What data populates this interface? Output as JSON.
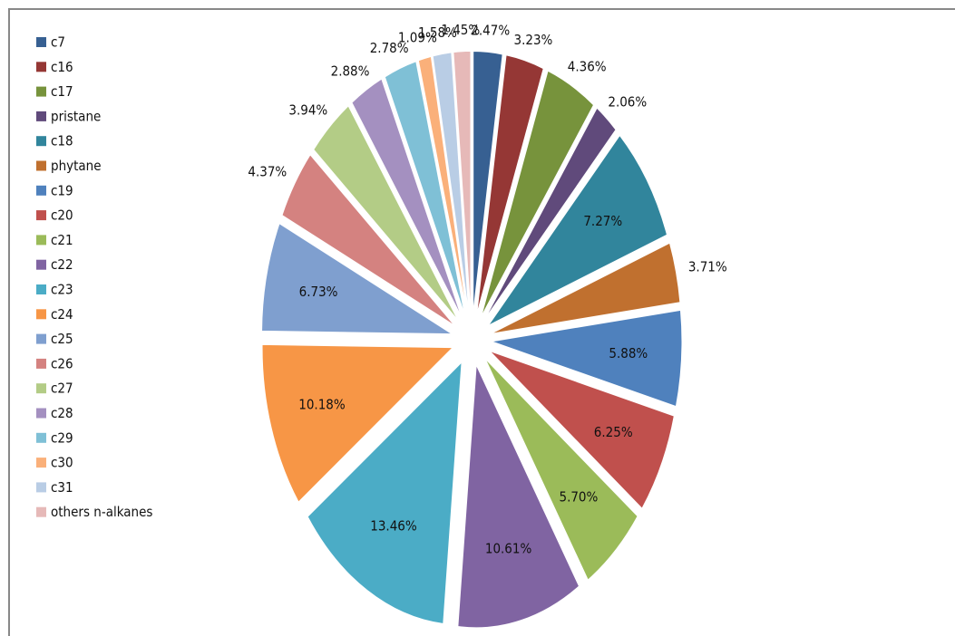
{
  "chart_data": {
    "type": "pie",
    "categories": [
      "c7",
      "c16",
      "c17",
      "pristane",
      "c18",
      "phytane",
      "c19",
      "c20",
      "c21",
      "c22",
      "c23",
      "c24",
      "c25",
      "c26",
      "c27",
      "c28",
      "c29",
      "c30",
      "c31",
      "others  n-alkanes"
    ],
    "values": [
      2.47,
      3.23,
      4.36,
      2.06,
      7.27,
      3.71,
      5.88,
      6.25,
      5.7,
      10.61,
      13.46,
      10.18,
      6.73,
      4.37,
      3.94,
      2.88,
      2.78,
      1.09,
      1.58,
      1.45
    ],
    "value_labels": [
      "2.47%",
      "3.23%",
      "4.36%",
      "2.06%",
      "7.27%",
      "3.71%",
      "5.88%",
      "6.25%",
      "5.70%",
      "10.61%",
      "13.46%",
      "10.18%",
      "6.73%",
      "4.37%",
      "3.94%",
      "2.88%",
      "2.78%",
      "1.09%",
      "1.58%",
      "1.45%"
    ],
    "colors": [
      "#376092",
      "#953735",
      "#77933c",
      "#604a7b",
      "#31859c",
      "#c0702f",
      "#4f81bd",
      "#c0504d",
      "#9bbb59",
      "#8064a2",
      "#4bacc6",
      "#f79646",
      "#7f9fcf",
      "#d48280",
      "#b3cc86",
      "#a490c0",
      "#7fc0d6",
      "#fab07a",
      "#b9cde5",
      "#e6b9b8"
    ],
    "legend": "left"
  }
}
